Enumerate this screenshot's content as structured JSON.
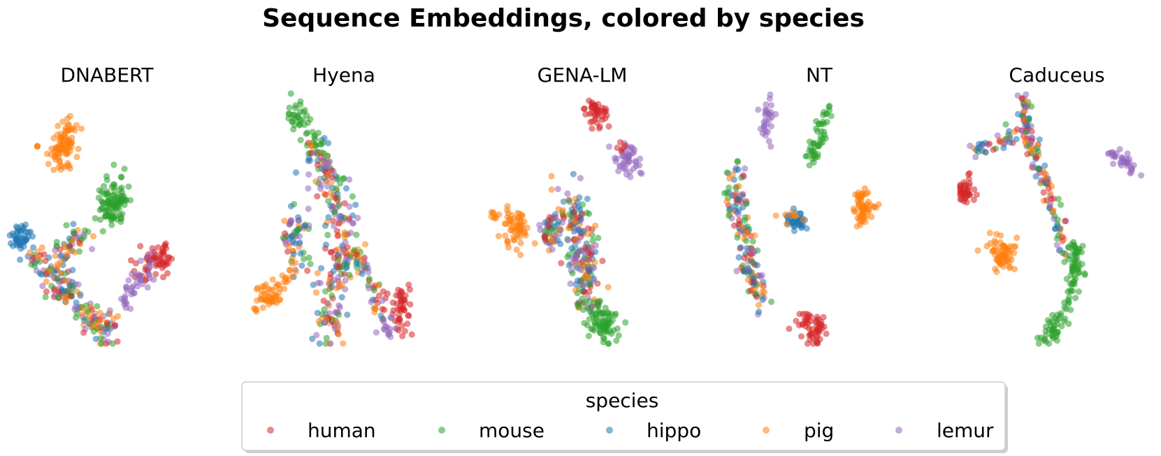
{
  "chart_data": {
    "type": "scatter",
    "title": "Sequence Embeddings, colored by species",
    "legend": {
      "title": "species",
      "placement": "bottom-center",
      "entries": [
        {
          "name": "human",
          "color": "#d62728"
        },
        {
          "name": "mouse",
          "color": "#2ca02c"
        },
        {
          "name": "hippo",
          "color": "#1f77b4"
        },
        {
          "name": "pig",
          "color": "#ff7f0e"
        },
        {
          "name": "lemur",
          "color": "#9467bd"
        }
      ]
    },
    "grid": false,
    "axes_visible": false,
    "panels": [
      {
        "title": "DNABERT",
        "clusters": [
          {
            "species": "pig",
            "path": [
              [
                0.32,
                0.88
              ],
              [
                0.3,
                0.8
              ],
              [
                0.27,
                0.72
              ]
            ],
            "spread": 0.035,
            "n": 90
          },
          {
            "species": "pig",
            "path": [
              [
                0.15,
                0.79
              ],
              [
                0.15,
                0.79
              ]
            ],
            "spread": 0.006,
            "n": 3
          },
          {
            "species": "mouse",
            "path": [
              [
                0.6,
                0.61
              ],
              [
                0.58,
                0.56
              ],
              [
                0.55,
                0.53
              ]
            ],
            "spread": 0.04,
            "n": 100
          },
          {
            "species": "hippo",
            "path": [
              [
                0.06,
                0.38
              ],
              [
                0.05,
                0.42
              ],
              [
                0.09,
                0.46
              ]
            ],
            "spread": 0.02,
            "n": 45
          },
          {
            "species": "human",
            "path": [
              [
                0.72,
                0.3
              ],
              [
                0.8,
                0.36
              ],
              [
                0.87,
                0.33
              ]
            ],
            "spread": 0.03,
            "n": 60
          },
          {
            "species": "lemur",
            "path": [
              [
                0.62,
                0.16
              ],
              [
                0.7,
                0.24
              ],
              [
                0.76,
                0.3
              ]
            ],
            "spread": 0.025,
            "n": 40
          },
          {
            "species": "mixed",
            "path": [
              [
                0.12,
                0.36
              ],
              [
                0.24,
                0.28
              ],
              [
                0.3,
                0.22
              ],
              [
                0.38,
                0.15
              ],
              [
                0.48,
                0.06
              ],
              [
                0.54,
                0.06
              ]
            ],
            "spread": 0.035,
            "n": 170
          },
          {
            "species": "mixed",
            "path": [
              [
                0.28,
                0.34
              ],
              [
                0.34,
                0.4
              ],
              [
                0.4,
                0.44
              ]
            ],
            "spread": 0.03,
            "n": 50
          }
        ]
      },
      {
        "title": "Hyena",
        "clusters": [
          {
            "species": "mouse",
            "path": [
              [
                0.24,
                0.96
              ],
              [
                0.3,
                0.86
              ],
              [
                0.38,
                0.76
              ]
            ],
            "spread": 0.03,
            "n": 55
          },
          {
            "species": "mixed",
            "path": [
              [
                0.36,
                0.78
              ],
              [
                0.44,
                0.68
              ],
              [
                0.5,
                0.58
              ],
              [
                0.52,
                0.45
              ],
              [
                0.5,
                0.3
              ],
              [
                0.46,
                0.14
              ],
              [
                0.44,
                0.04
              ]
            ],
            "spread": 0.04,
            "n": 230
          },
          {
            "species": "mixed",
            "path": [
              [
                0.3,
                0.5
              ],
              [
                0.24,
                0.42
              ],
              [
                0.26,
                0.34
              ]
            ],
            "spread": 0.035,
            "n": 60
          },
          {
            "species": "mixed",
            "path": [
              [
                0.56,
                0.38
              ],
              [
                0.64,
                0.3
              ],
              [
                0.7,
                0.22
              ],
              [
                0.72,
                0.12
              ]
            ],
            "spread": 0.03,
            "n": 60
          },
          {
            "species": "pig",
            "path": [
              [
                0.06,
                0.14
              ],
              [
                0.12,
                0.18
              ],
              [
                0.2,
                0.25
              ],
              [
                0.26,
                0.3
              ]
            ],
            "spread": 0.025,
            "n": 60
          },
          {
            "species": "human",
            "path": [
              [
                0.82,
                0.2
              ],
              [
                0.86,
                0.14
              ],
              [
                0.84,
                0.07
              ]
            ],
            "spread": 0.03,
            "n": 45
          },
          {
            "species": "lemur",
            "path": [
              [
                0.76,
                0.1
              ],
              [
                0.76,
                0.02
              ]
            ],
            "spread": 0.02,
            "n": 15
          }
        ]
      },
      {
        "title": "GENA-LM",
        "clusters": [
          {
            "species": "human",
            "path": [
              [
                0.6,
                0.94
              ],
              [
                0.62,
                0.9
              ]
            ],
            "spread": 0.03,
            "n": 45
          },
          {
            "species": "lemur",
            "path": [
              [
                0.76,
                0.74
              ],
              [
                0.82,
                0.72
              ]
            ],
            "spread": 0.03,
            "n": 45
          },
          {
            "species": "human",
            "path": [
              [
                0.74,
                0.78
              ],
              [
                0.76,
                0.78
              ]
            ],
            "spread": 0.012,
            "n": 5
          },
          {
            "species": "pig",
            "path": [
              [
                0.14,
                0.48
              ],
              [
                0.2,
                0.44
              ]
            ],
            "spread": 0.035,
            "n": 60
          },
          {
            "species": "pig",
            "path": [
              [
                0.04,
                0.52
              ],
              [
                0.06,
                0.52
              ]
            ],
            "spread": 0.012,
            "n": 8
          },
          {
            "species": "mixed",
            "path": [
              [
                0.44,
                0.58
              ],
              [
                0.5,
                0.5
              ],
              [
                0.52,
                0.4
              ],
              [
                0.54,
                0.3
              ],
              [
                0.56,
                0.18
              ]
            ],
            "spread": 0.045,
            "n": 190
          },
          {
            "species": "mixed",
            "path": [
              [
                0.34,
                0.5
              ],
              [
                0.36,
                0.44
              ],
              [
                0.4,
                0.4
              ]
            ],
            "spread": 0.03,
            "n": 50
          },
          {
            "species": "mouse",
            "path": [
              [
                0.58,
                0.14
              ],
              [
                0.64,
                0.08
              ],
              [
                0.68,
                0.04
              ]
            ],
            "spread": 0.035,
            "n": 85
          }
        ]
      },
      {
        "title": "NT",
        "clusters": [
          {
            "species": "lemur",
            "path": [
              [
                0.26,
                0.96
              ],
              [
                0.24,
                0.88
              ],
              [
                0.23,
                0.82
              ]
            ],
            "spread": 0.02,
            "n": 30
          },
          {
            "species": "mouse",
            "path": [
              [
                0.58,
                0.94
              ],
              [
                0.54,
                0.84
              ],
              [
                0.48,
                0.74
              ]
            ],
            "spread": 0.02,
            "n": 50
          },
          {
            "species": "mixed",
            "path": [
              [
                0.08,
                0.7
              ],
              [
                0.06,
                0.62
              ],
              [
                0.08,
                0.54
              ],
              [
                0.12,
                0.44
              ],
              [
                0.14,
                0.34
              ],
              [
                0.18,
                0.24
              ],
              [
                0.22,
                0.16
              ]
            ],
            "spread": 0.028,
            "n": 150
          },
          {
            "species": "hippo",
            "path": [
              [
                0.38,
                0.49
              ],
              [
                0.44,
                0.48
              ]
            ],
            "spread": 0.022,
            "n": 40
          },
          {
            "species": "pig",
            "path": [
              [
                0.42,
                0.51
              ],
              [
                0.32,
                0.49
              ]
            ],
            "spread": 0.015,
            "n": 8
          },
          {
            "species": "pig",
            "path": [
              [
                0.76,
                0.6
              ],
              [
                0.78,
                0.54
              ],
              [
                0.76,
                0.5
              ]
            ],
            "spread": 0.022,
            "n": 60
          },
          {
            "species": "pig",
            "path": [
              [
                0.84,
                0.55
              ],
              [
                0.84,
                0.55
              ]
            ],
            "spread": 0.005,
            "n": 2
          },
          {
            "species": "human",
            "path": [
              [
                0.44,
                0.1
              ],
              [
                0.5,
                0.06
              ],
              [
                0.54,
                0.04
              ]
            ],
            "spread": 0.03,
            "n": 55
          }
        ]
      },
      {
        "title": "Caduceus",
        "clusters": [
          {
            "species": "mixed",
            "path": [
              [
                0.36,
                0.98
              ],
              [
                0.36,
                0.9
              ],
              [
                0.38,
                0.82
              ],
              [
                0.42,
                0.74
              ],
              [
                0.46,
                0.66
              ],
              [
                0.5,
                0.56
              ],
              [
                0.54,
                0.46
              ],
              [
                0.58,
                0.36
              ]
            ],
            "spread": 0.02,
            "n": 140
          },
          {
            "species": "mixed",
            "path": [
              [
                0.06,
                0.76
              ],
              [
                0.14,
                0.8
              ],
              [
                0.24,
                0.82
              ],
              [
                0.33,
                0.84
              ]
            ],
            "spread": 0.018,
            "n": 40
          },
          {
            "species": "lemur",
            "path": [
              [
                0.82,
                0.76
              ],
              [
                0.9,
                0.74
              ],
              [
                0.96,
                0.7
              ]
            ],
            "spread": 0.015,
            "n": 35
          },
          {
            "species": "mouse",
            "path": [
              [
                0.62,
                0.4
              ],
              [
                0.64,
                0.3
              ],
              [
                0.6,
                0.18
              ],
              [
                0.54,
                0.08
              ],
              [
                0.48,
                0.02
              ]
            ],
            "spread": 0.022,
            "n": 110
          },
          {
            "species": "human",
            "path": [
              [
                0.0,
                0.62
              ],
              [
                0.04,
                0.6
              ]
            ],
            "spread": 0.025,
            "n": 40
          },
          {
            "species": "pig",
            "path": [
              [
                0.2,
                0.36
              ],
              [
                0.24,
                0.34
              ]
            ],
            "spread": 0.035,
            "n": 65
          }
        ]
      }
    ]
  }
}
